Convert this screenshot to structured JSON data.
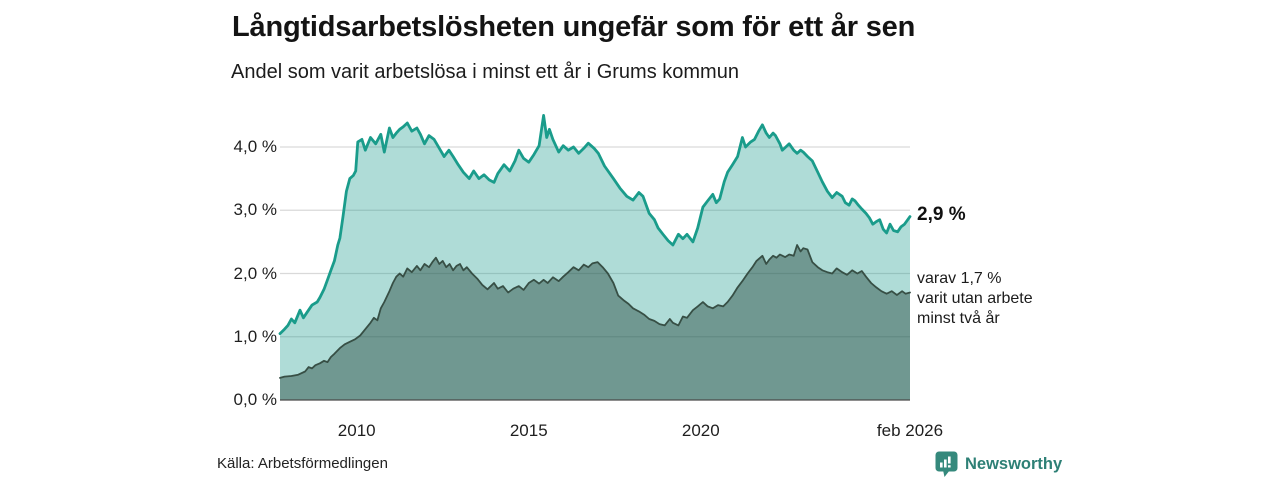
{
  "header": {
    "title": "Långtidsarbetslösheten ungefär som för ett år sen",
    "subtitle": "Andel som varit arbetslösa i minst ett år i Grums kommun"
  },
  "chart_data": {
    "type": "area",
    "title": "Långtidsarbetslösheten ungefär som för ett år sen",
    "subtitle": "Andel som varit arbetslösa i minst ett år i Grums kommun",
    "xlim": [
      2007.77,
      2026.08
    ],
    "ylim": [
      0,
      4.55
    ],
    "grid": true,
    "x_ticks": [
      {
        "label": "2010",
        "year": 2010
      },
      {
        "label": "2015",
        "year": 2015
      },
      {
        "label": "2020",
        "year": 2020
      },
      {
        "label": "feb 2026",
        "year": 2026.08
      }
    ],
    "y_ticks": [
      {
        "label": "0,0 %",
        "value": 0
      },
      {
        "label": "1,0 %",
        "value": 1
      },
      {
        "label": "2,0 %",
        "value": 2
      },
      {
        "label": "3,0 %",
        "value": 3
      },
      {
        "label": "4,0 %",
        "value": 4
      }
    ],
    "colors": {
      "grid": "#d9d9d9",
      "axis": "#4a4a4a",
      "accent_teal": "#1a9c8b",
      "dark_green": "#374f45",
      "brand_teal": "#2e8076"
    },
    "series": [
      {
        "name": "Andel arbetslösa minst ett år",
        "line_color": "#1a9c8b",
        "fill_color": "rgba(26,156,139,0.35)",
        "line_width": 2.8,
        "end_value": 2.9,
        "points": [
          [
            2007.77,
            1.05
          ],
          [
            2007.9,
            1.12
          ],
          [
            2008.0,
            1.18
          ],
          [
            2008.1,
            1.28
          ],
          [
            2008.2,
            1.22
          ],
          [
            2008.35,
            1.42
          ],
          [
            2008.45,
            1.3
          ],
          [
            2008.55,
            1.38
          ],
          [
            2008.7,
            1.5
          ],
          [
            2008.85,
            1.55
          ],
          [
            2008.93,
            1.62
          ],
          [
            2009.05,
            1.75
          ],
          [
            2009.15,
            1.9
          ],
          [
            2009.25,
            2.05
          ],
          [
            2009.35,
            2.2
          ],
          [
            2009.45,
            2.45
          ],
          [
            2009.51,
            2.56
          ],
          [
            2009.6,
            2.9
          ],
          [
            2009.7,
            3.3
          ],
          [
            2009.8,
            3.5
          ],
          [
            2009.9,
            3.55
          ],
          [
            2009.97,
            3.62
          ],
          [
            2010.03,
            4.08
          ],
          [
            2010.15,
            4.12
          ],
          [
            2010.25,
            3.95
          ],
          [
            2010.4,
            4.15
          ],
          [
            2010.55,
            4.05
          ],
          [
            2010.7,
            4.2
          ],
          [
            2010.8,
            3.92
          ],
          [
            2010.95,
            4.3
          ],
          [
            2011.05,
            4.15
          ],
          [
            2011.15,
            4.22
          ],
          [
            2011.25,
            4.28
          ],
          [
            2011.35,
            4.32
          ],
          [
            2011.47,
            4.38
          ],
          [
            2011.6,
            4.25
          ],
          [
            2011.75,
            4.3
          ],
          [
            2011.85,
            4.2
          ],
          [
            2011.97,
            4.05
          ],
          [
            2012.1,
            4.18
          ],
          [
            2012.25,
            4.12
          ],
          [
            2012.4,
            3.98
          ],
          [
            2012.54,
            3.85
          ],
          [
            2012.68,
            3.95
          ],
          [
            2012.8,
            3.85
          ],
          [
            2012.95,
            3.72
          ],
          [
            2013.1,
            3.6
          ],
          [
            2013.27,
            3.5
          ],
          [
            2013.4,
            3.62
          ],
          [
            2013.55,
            3.5
          ],
          [
            2013.7,
            3.56
          ],
          [
            2013.85,
            3.48
          ],
          [
            2013.99,
            3.44
          ],
          [
            2014.1,
            3.58
          ],
          [
            2014.28,
            3.72
          ],
          [
            2014.45,
            3.62
          ],
          [
            2014.6,
            3.78
          ],
          [
            2014.71,
            3.95
          ],
          [
            2014.85,
            3.82
          ],
          [
            2015.0,
            3.76
          ],
          [
            2015.15,
            3.88
          ],
          [
            2015.3,
            4.02
          ],
          [
            2015.43,
            4.5
          ],
          [
            2015.52,
            4.15
          ],
          [
            2015.6,
            4.28
          ],
          [
            2015.7,
            4.12
          ],
          [
            2015.87,
            3.92
          ],
          [
            2016.0,
            4.02
          ],
          [
            2016.15,
            3.95
          ],
          [
            2016.3,
            4.0
          ],
          [
            2016.45,
            3.9
          ],
          [
            2016.6,
            3.98
          ],
          [
            2016.73,
            4.06
          ],
          [
            2016.9,
            3.98
          ],
          [
            2017.02,
            3.9
          ],
          [
            2017.2,
            3.7
          ],
          [
            2017.46,
            3.5
          ],
          [
            2017.65,
            3.35
          ],
          [
            2017.85,
            3.22
          ],
          [
            2018.03,
            3.16
          ],
          [
            2018.2,
            3.28
          ],
          [
            2018.32,
            3.22
          ],
          [
            2018.5,
            2.95
          ],
          [
            2018.65,
            2.85
          ],
          [
            2018.76,
            2.72
          ],
          [
            2018.9,
            2.62
          ],
          [
            2019.05,
            2.52
          ],
          [
            2019.19,
            2.45
          ],
          [
            2019.35,
            2.62
          ],
          [
            2019.48,
            2.55
          ],
          [
            2019.6,
            2.62
          ],
          [
            2019.77,
            2.5
          ],
          [
            2019.91,
            2.72
          ],
          [
            2020.06,
            3.05
          ],
          [
            2020.2,
            3.15
          ],
          [
            2020.35,
            3.25
          ],
          [
            2020.45,
            3.12
          ],
          [
            2020.55,
            3.18
          ],
          [
            2020.68,
            3.45
          ],
          [
            2020.78,
            3.6
          ],
          [
            2020.92,
            3.72
          ],
          [
            2021.07,
            3.85
          ],
          [
            2021.21,
            4.15
          ],
          [
            2021.3,
            4.0
          ],
          [
            2021.45,
            4.08
          ],
          [
            2021.56,
            4.12
          ],
          [
            2021.68,
            4.25
          ],
          [
            2021.79,
            4.35
          ],
          [
            2021.9,
            4.22
          ],
          [
            2021.99,
            4.15
          ],
          [
            2022.1,
            4.22
          ],
          [
            2022.17,
            4.18
          ],
          [
            2022.3,
            4.05
          ],
          [
            2022.37,
            3.95
          ],
          [
            2022.47,
            4.0
          ],
          [
            2022.57,
            4.05
          ],
          [
            2022.7,
            3.95
          ],
          [
            2022.8,
            3.9
          ],
          [
            2022.9,
            3.95
          ],
          [
            2022.98,
            3.92
          ],
          [
            2023.1,
            3.85
          ],
          [
            2023.24,
            3.78
          ],
          [
            2023.4,
            3.6
          ],
          [
            2023.53,
            3.45
          ],
          [
            2023.68,
            3.3
          ],
          [
            2023.82,
            3.2
          ],
          [
            2023.95,
            3.28
          ],
          [
            2024.11,
            3.22
          ],
          [
            2024.2,
            3.12
          ],
          [
            2024.31,
            3.08
          ],
          [
            2024.4,
            3.18
          ],
          [
            2024.48,
            3.15
          ],
          [
            2024.58,
            3.08
          ],
          [
            2024.68,
            3.02
          ],
          [
            2024.8,
            2.95
          ],
          [
            2024.9,
            2.88
          ],
          [
            2025.0,
            2.78
          ],
          [
            2025.1,
            2.82
          ],
          [
            2025.2,
            2.85
          ],
          [
            2025.3,
            2.7
          ],
          [
            2025.4,
            2.64
          ],
          [
            2025.5,
            2.78
          ],
          [
            2025.6,
            2.68
          ],
          [
            2025.72,
            2.66
          ],
          [
            2025.82,
            2.74
          ],
          [
            2025.92,
            2.78
          ],
          [
            2026.08,
            2.9
          ]
        ]
      },
      {
        "name": "varav utan arbete minst två år",
        "line_color": "#374f45",
        "fill_color": "rgba(42,77,66,0.47)",
        "line_width": 1.8,
        "end_value": 1.7,
        "points": [
          [
            2007.77,
            0.35
          ],
          [
            2007.9,
            0.37
          ],
          [
            2008.1,
            0.38
          ],
          [
            2008.3,
            0.4
          ],
          [
            2008.5,
            0.45
          ],
          [
            2008.6,
            0.52
          ],
          [
            2008.7,
            0.5
          ],
          [
            2008.8,
            0.55
          ],
          [
            2008.93,
            0.58
          ],
          [
            2009.05,
            0.62
          ],
          [
            2009.15,
            0.6
          ],
          [
            2009.25,
            0.68
          ],
          [
            2009.35,
            0.73
          ],
          [
            2009.51,
            0.82
          ],
          [
            2009.65,
            0.88
          ],
          [
            2009.8,
            0.92
          ],
          [
            2009.95,
            0.96
          ],
          [
            2010.1,
            1.02
          ],
          [
            2010.25,
            1.12
          ],
          [
            2010.4,
            1.22
          ],
          [
            2010.5,
            1.3
          ],
          [
            2010.6,
            1.26
          ],
          [
            2010.7,
            1.45
          ],
          [
            2010.8,
            1.55
          ],
          [
            2010.95,
            1.72
          ],
          [
            2011.05,
            1.85
          ],
          [
            2011.15,
            1.95
          ],
          [
            2011.25,
            2.0
          ],
          [
            2011.35,
            1.95
          ],
          [
            2011.47,
            2.08
          ],
          [
            2011.6,
            2.02
          ],
          [
            2011.75,
            2.12
          ],
          [
            2011.85,
            2.05
          ],
          [
            2011.97,
            2.15
          ],
          [
            2012.1,
            2.1
          ],
          [
            2012.2,
            2.18
          ],
          [
            2012.3,
            2.25
          ],
          [
            2012.4,
            2.15
          ],
          [
            2012.5,
            2.2
          ],
          [
            2012.6,
            2.1
          ],
          [
            2012.7,
            2.15
          ],
          [
            2012.8,
            2.05
          ],
          [
            2012.9,
            2.12
          ],
          [
            2013.0,
            2.15
          ],
          [
            2013.1,
            2.05
          ],
          [
            2013.2,
            2.1
          ],
          [
            2013.35,
            2.0
          ],
          [
            2013.5,
            1.92
          ],
          [
            2013.65,
            1.82
          ],
          [
            2013.8,
            1.75
          ],
          [
            2013.99,
            1.85
          ],
          [
            2014.1,
            1.76
          ],
          [
            2014.25,
            1.8
          ],
          [
            2014.4,
            1.7
          ],
          [
            2014.55,
            1.76
          ],
          [
            2014.71,
            1.8
          ],
          [
            2014.85,
            1.74
          ],
          [
            2015.0,
            1.85
          ],
          [
            2015.15,
            1.9
          ],
          [
            2015.3,
            1.84
          ],
          [
            2015.43,
            1.9
          ],
          [
            2015.55,
            1.85
          ],
          [
            2015.7,
            1.94
          ],
          [
            2015.87,
            1.88
          ],
          [
            2016.0,
            1.95
          ],
          [
            2016.15,
            2.02
          ],
          [
            2016.3,
            2.1
          ],
          [
            2016.45,
            2.05
          ],
          [
            2016.6,
            2.14
          ],
          [
            2016.73,
            2.1
          ],
          [
            2016.85,
            2.16
          ],
          [
            2017.0,
            2.18
          ],
          [
            2017.15,
            2.1
          ],
          [
            2017.3,
            2.0
          ],
          [
            2017.46,
            1.85
          ],
          [
            2017.6,
            1.65
          ],
          [
            2017.75,
            1.58
          ],
          [
            2017.9,
            1.52
          ],
          [
            2018.03,
            1.45
          ],
          [
            2018.2,
            1.4
          ],
          [
            2018.35,
            1.35
          ],
          [
            2018.5,
            1.28
          ],
          [
            2018.65,
            1.25
          ],
          [
            2018.8,
            1.2
          ],
          [
            2018.95,
            1.18
          ],
          [
            2019.1,
            1.28
          ],
          [
            2019.19,
            1.22
          ],
          [
            2019.35,
            1.18
          ],
          [
            2019.48,
            1.32
          ],
          [
            2019.6,
            1.3
          ],
          [
            2019.77,
            1.42
          ],
          [
            2019.91,
            1.48
          ],
          [
            2020.06,
            1.55
          ],
          [
            2020.2,
            1.48
          ],
          [
            2020.35,
            1.45
          ],
          [
            2020.5,
            1.5
          ],
          [
            2020.65,
            1.48
          ],
          [
            2020.78,
            1.55
          ],
          [
            2020.92,
            1.65
          ],
          [
            2021.07,
            1.78
          ],
          [
            2021.21,
            1.88
          ],
          [
            2021.36,
            2.0
          ],
          [
            2021.5,
            2.1
          ],
          [
            2021.62,
            2.2
          ],
          [
            2021.79,
            2.28
          ],
          [
            2021.9,
            2.15
          ],
          [
            2021.99,
            2.22
          ],
          [
            2022.1,
            2.28
          ],
          [
            2022.2,
            2.25
          ],
          [
            2022.3,
            2.3
          ],
          [
            2022.45,
            2.26
          ],
          [
            2022.57,
            2.3
          ],
          [
            2022.7,
            2.28
          ],
          [
            2022.8,
            2.45
          ],
          [
            2022.9,
            2.35
          ],
          [
            2022.98,
            2.4
          ],
          [
            2023.1,
            2.38
          ],
          [
            2023.24,
            2.18
          ],
          [
            2023.4,
            2.1
          ],
          [
            2023.53,
            2.05
          ],
          [
            2023.68,
            2.02
          ],
          [
            2023.82,
            2.0
          ],
          [
            2023.95,
            2.08
          ],
          [
            2024.11,
            2.02
          ],
          [
            2024.25,
            1.98
          ],
          [
            2024.4,
            2.05
          ],
          [
            2024.55,
            2.0
          ],
          [
            2024.68,
            2.04
          ],
          [
            2024.8,
            1.95
          ],
          [
            2024.95,
            1.85
          ],
          [
            2025.1,
            1.78
          ],
          [
            2025.25,
            1.72
          ],
          [
            2025.4,
            1.68
          ],
          [
            2025.55,
            1.72
          ],
          [
            2025.7,
            1.66
          ],
          [
            2025.85,
            1.72
          ],
          [
            2025.95,
            1.68
          ],
          [
            2026.08,
            1.7
          ]
        ]
      }
    ]
  },
  "annotations": {
    "end_value_top": "2,9 %",
    "note_lines": [
      "varav 1,7 %",
      "varit utan arbete",
      "minst två år"
    ]
  },
  "footer": {
    "source": "Källa: Arbetsförmedlingen",
    "brand": "Newsworthy"
  }
}
